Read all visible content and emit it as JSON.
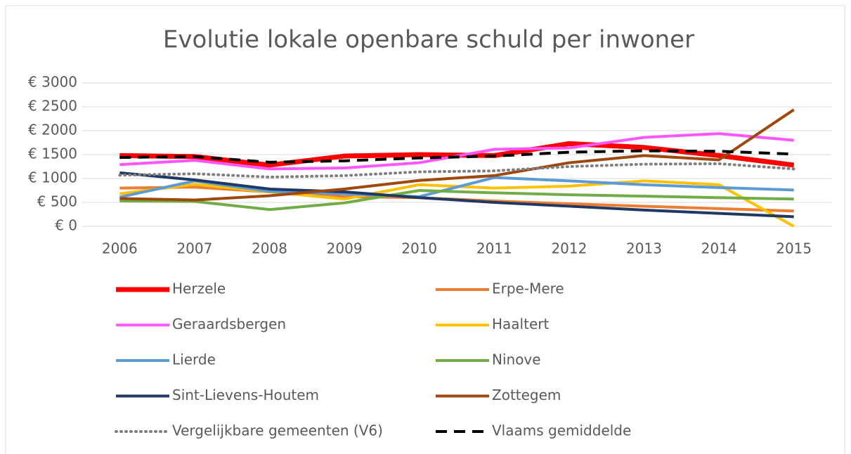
{
  "chart_data": {
    "type": "line",
    "title": "Evolutie lokale openbare schuld per inwoner",
    "categories": [
      "2006",
      "2007",
      "2008",
      "2009",
      "2010",
      "2011",
      "2012",
      "2013",
      "2014",
      "2015"
    ],
    "ylim": [
      0,
      3000
    ],
    "yticks": [
      {
        "value": 0,
        "label": "€ 0"
      },
      {
        "value": 500,
        "label": "€ 500"
      },
      {
        "value": 1000,
        "label": "€ 1000"
      },
      {
        "value": 1500,
        "label": "€ 1500"
      },
      {
        "value": 2000,
        "label": "€ 2000"
      },
      {
        "value": 2500,
        "label": "€ 2500"
      },
      {
        "value": 3000,
        "label": "€ 3000"
      }
    ],
    "grid": true,
    "legend": "bottom",
    "series": [
      {
        "name": "Herzele",
        "color": "#ff0000",
        "line_style": "bold",
        "values": [
          1480,
          1460,
          1280,
          1470,
          1500,
          1480,
          1730,
          1650,
          1480,
          1280
        ]
      },
      {
        "name": "Erpe-Mere",
        "color": "#ed7d31",
        "line_style": "solid",
        "values": [
          800,
          820,
          720,
          620,
          600,
          530,
          470,
          420,
          370,
          320
        ]
      },
      {
        "name": "Geraardsbergen",
        "color": "#ff55ff",
        "line_style": "solid",
        "values": [
          1290,
          1380,
          1200,
          1220,
          1330,
          1610,
          1640,
          1860,
          1940,
          1800
        ]
      },
      {
        "name": "Haaltert",
        "color": "#ffc000",
        "line_style": "solid",
        "values": [
          680,
          880,
          720,
          570,
          870,
          800,
          840,
          950,
          870,
          0
        ]
      },
      {
        "name": "Lierde",
        "color": "#5b9bd5",
        "line_style": "solid",
        "values": [
          610,
          950,
          730,
          680,
          620,
          1020,
          950,
          870,
          810,
          760
        ]
      },
      {
        "name": "Ninove",
        "color": "#70ad47",
        "line_style": "solid",
        "values": [
          530,
          520,
          350,
          490,
          750,
          700,
          660,
          630,
          600,
          570
        ]
      },
      {
        "name": "Sint-Lievens-Houtem",
        "color": "#203864",
        "line_style": "solid",
        "values": [
          1120,
          970,
          780,
          720,
          600,
          500,
          420,
          340,
          270,
          200
        ]
      },
      {
        "name": "Zottegem",
        "color": "#9e480e",
        "line_style": "solid",
        "values": [
          580,
          550,
          640,
          780,
          960,
          1060,
          1330,
          1480,
          1390,
          2440
        ]
      },
      {
        "name": "Vergelijkbare gemeenten (V6)",
        "color": "#7f7f7f",
        "line_style": "dotted",
        "values": [
          1070,
          1100,
          1030,
          1060,
          1140,
          1160,
          1250,
          1300,
          1310,
          1200
        ]
      },
      {
        "name": "Vlaams gemiddelde",
        "color": "#000000",
        "line_style": "dashed",
        "values": [
          1440,
          1460,
          1340,
          1370,
          1430,
          1470,
          1550,
          1580,
          1570,
          1510
        ]
      }
    ]
  }
}
